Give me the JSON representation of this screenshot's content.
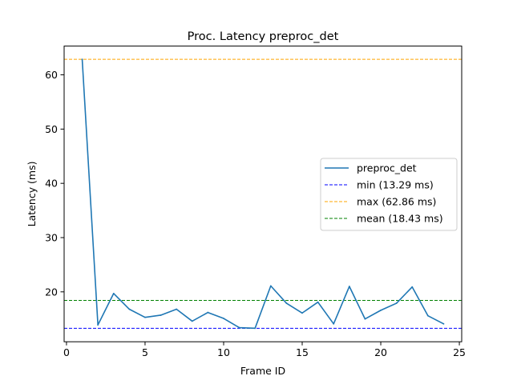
{
  "chart_data": {
    "type": "line",
    "title": "Proc. Latency preproc_det",
    "xlabel": "Frame ID",
    "ylabel": "Latency (ms)",
    "xlim": [
      -0.15,
      25.15
    ],
    "ylim": [
      10.8,
      65.3
    ],
    "xticks": [
      0,
      5,
      10,
      15,
      20,
      25
    ],
    "yticks": [
      20,
      30,
      40,
      50,
      60
    ],
    "grid": false,
    "legend_position": "center-right",
    "series": [
      {
        "name": "preproc_det",
        "color": "#1f77b4",
        "style": "solid",
        "x": [
          1,
          2,
          3,
          4,
          5,
          6,
          7,
          8,
          9,
          10,
          11,
          12,
          13,
          14,
          15,
          16,
          17,
          18,
          19,
          20,
          21,
          22,
          23,
          24
        ],
        "y": [
          62.86,
          13.9,
          19.7,
          16.8,
          15.3,
          15.7,
          16.8,
          14.6,
          16.2,
          15.1,
          13.4,
          13.29,
          21.1,
          17.9,
          16.1,
          18.1,
          14.1,
          21.0,
          15.0,
          16.6,
          17.9,
          20.9,
          15.6,
          14.1
        ]
      }
    ],
    "reference_lines": [
      {
        "name": "min (13.29 ms)",
        "value": 13.29,
        "color": "#0000ff",
        "style": "dashed"
      },
      {
        "name": "max (62.86 ms)",
        "value": 62.86,
        "color": "#ffa500",
        "style": "dashed"
      },
      {
        "name": "mean (18.43 ms)",
        "value": 18.43,
        "color": "#008000",
        "style": "dashed"
      }
    ]
  }
}
